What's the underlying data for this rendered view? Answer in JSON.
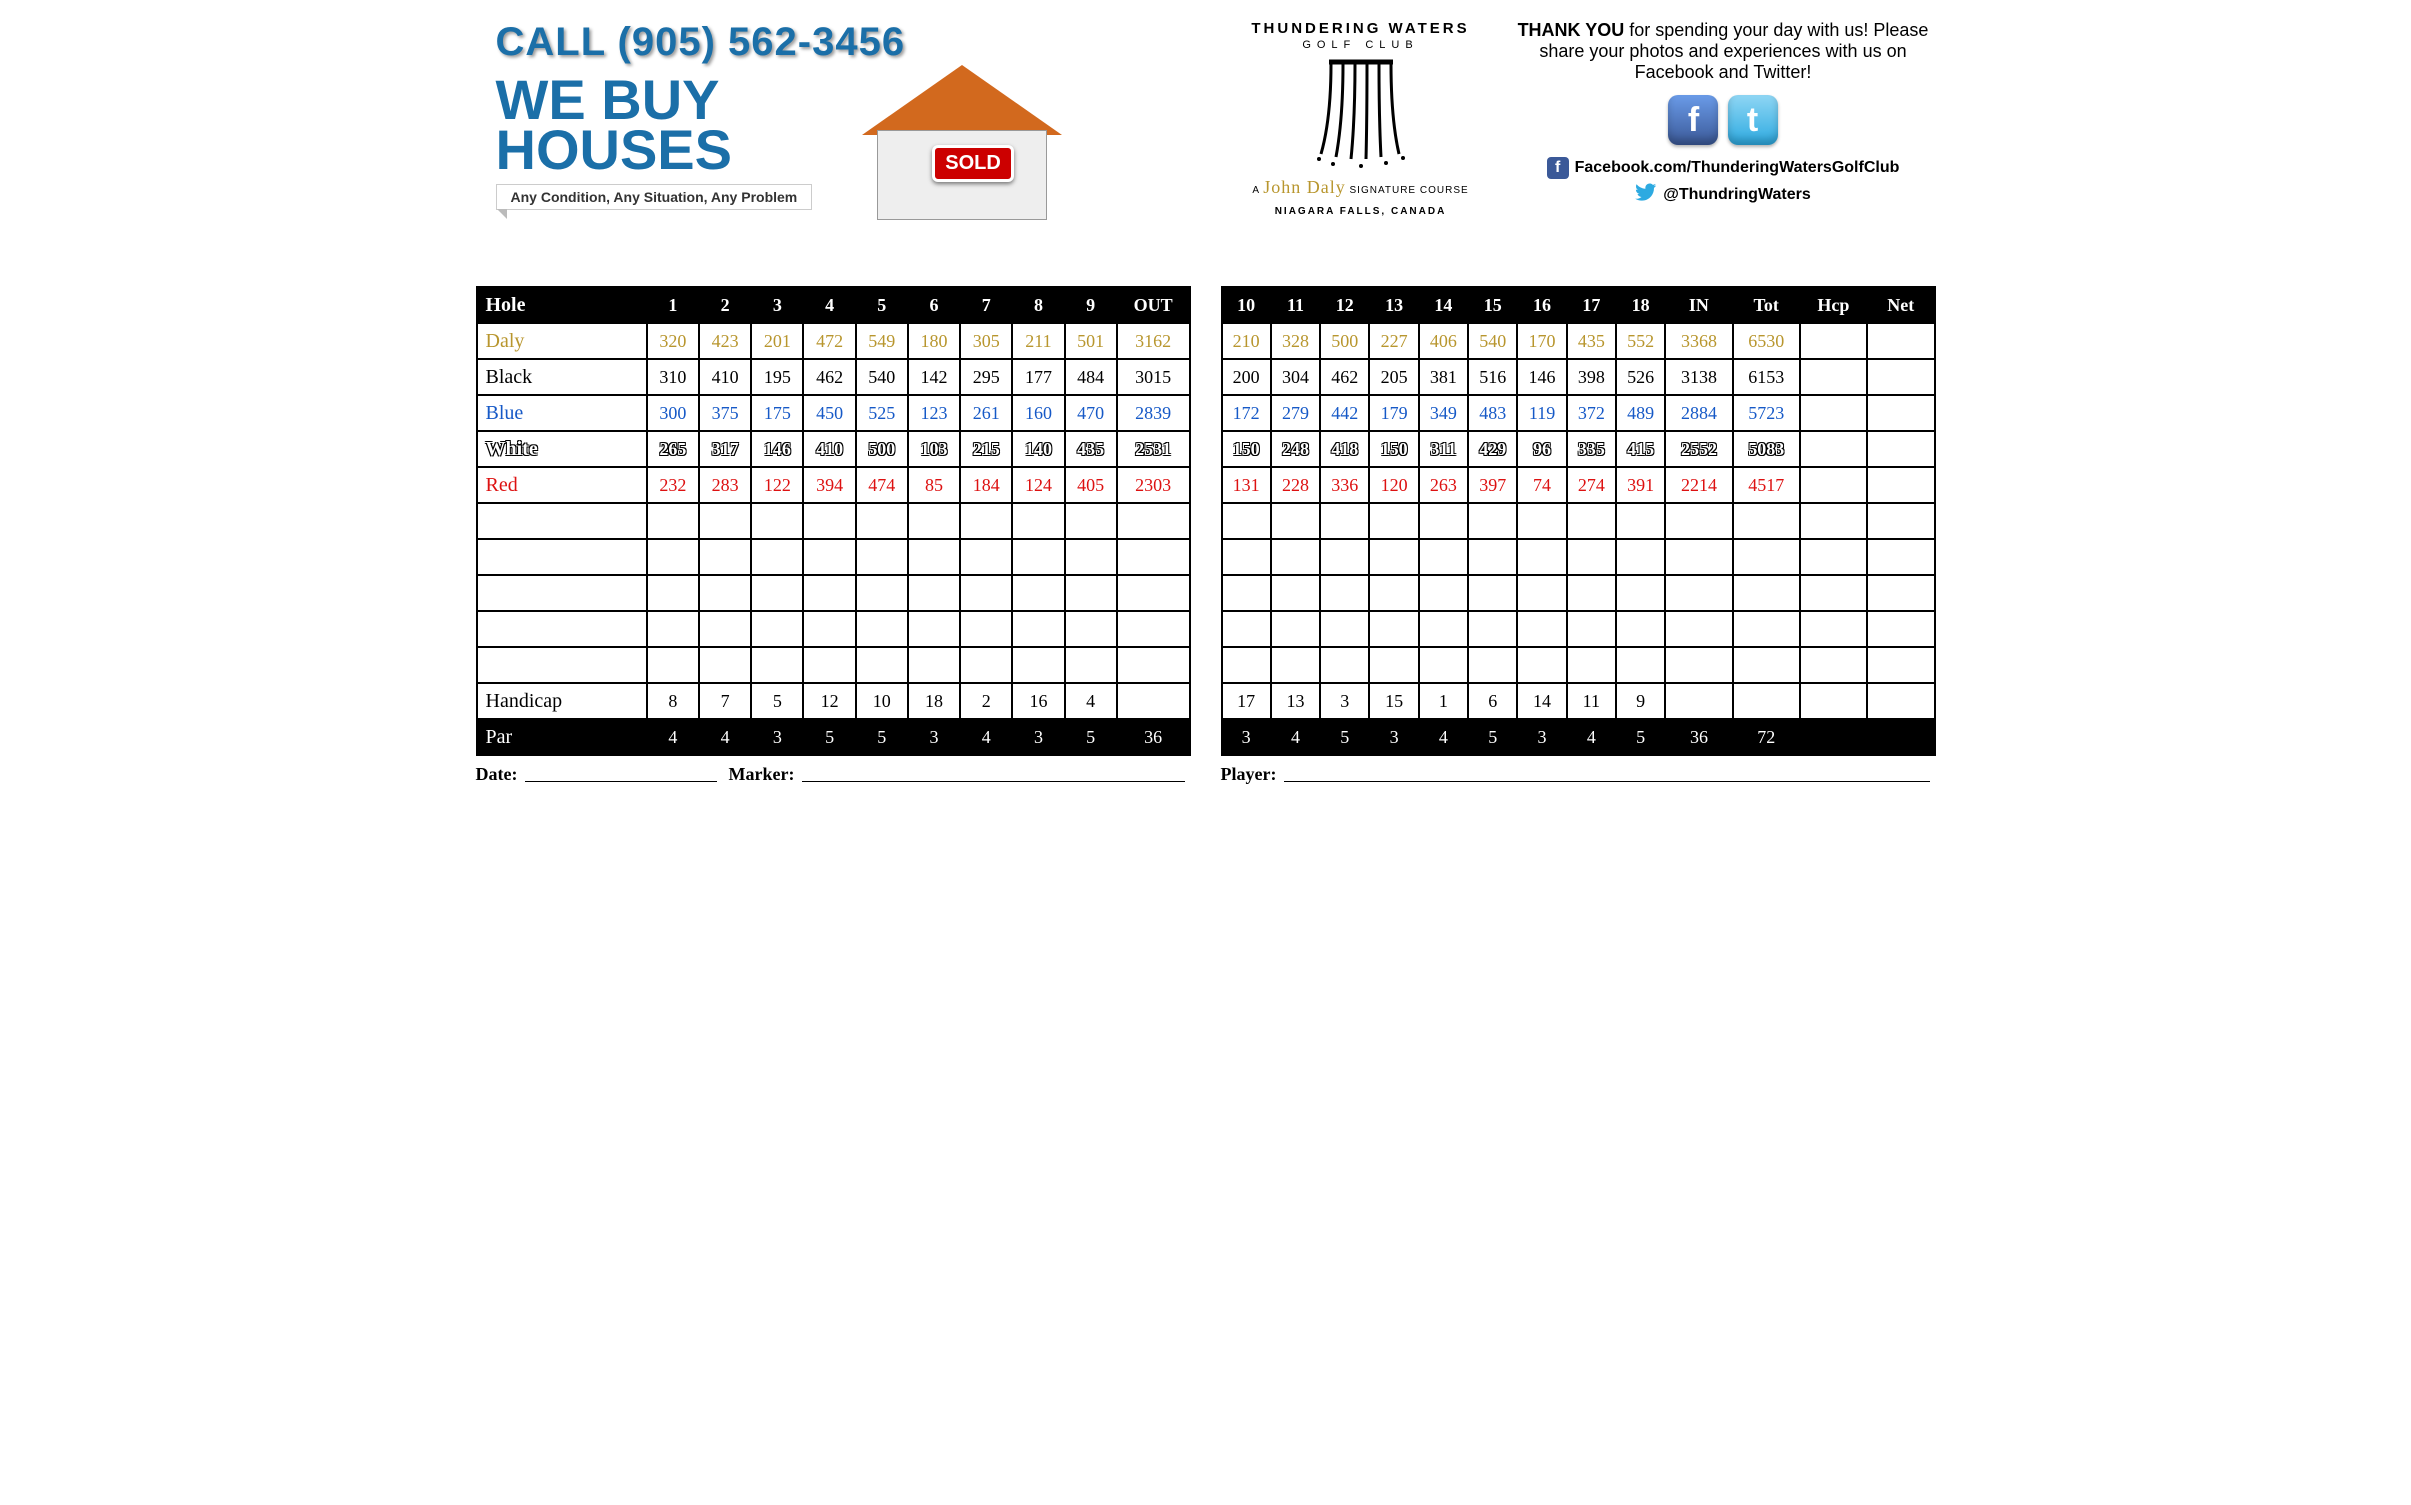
{
  "ad": {
    "phone": "CALL (905) 562-3456",
    "line1": "WE BUY",
    "line2": "HOUSES",
    "tagline": "Any Condition, Any Situation, Any Problem",
    "sold": "SOLD"
  },
  "club": {
    "name": "THUNDERING WATERS",
    "sub": "GOLF CLUB",
    "sig_prefix": "A",
    "sig_name": "John Daly",
    "sig_suffix": "SIGNATURE COURSE",
    "location": "NIAGARA FALLS, CANADA"
  },
  "thanks": {
    "bold": "THANK YOU",
    "rest": " for spending your day with us!  Please share your photos and experiences with us on Facebook and Twitter!",
    "fb_url": "Facebook.com/ThunderingWatersGolfClub",
    "tw_handle": "@ThundringWaters"
  },
  "colors": {
    "daly": "#b8962e",
    "black": "#000000",
    "blue": "#1659c7",
    "white_outline": "#000000",
    "red": "#dd1111",
    "header_bg": "#000000"
  },
  "front": {
    "header_label": "Hole",
    "headers": [
      "1",
      "2",
      "3",
      "4",
      "5",
      "6",
      "7",
      "8",
      "9",
      "OUT"
    ],
    "tees": [
      {
        "label": "Daly",
        "class": "c-daly",
        "vals": [
          "320",
          "423",
          "201",
          "472",
          "549",
          "180",
          "305",
          "211",
          "501",
          "3162"
        ]
      },
      {
        "label": "Black",
        "class": "",
        "vals": [
          "310",
          "410",
          "195",
          "462",
          "540",
          "142",
          "295",
          "177",
          "484",
          "3015"
        ]
      },
      {
        "label": "Blue",
        "class": "c-blue",
        "vals": [
          "300",
          "375",
          "175",
          "450",
          "525",
          "123",
          "261",
          "160",
          "470",
          "2839"
        ]
      },
      {
        "label": "White",
        "class": "c-white",
        "vals": [
          "265",
          "317",
          "146",
          "410",
          "500",
          "103",
          "215",
          "140",
          "435",
          "2531"
        ]
      },
      {
        "label": "Red",
        "class": "c-red",
        "vals": [
          "232",
          "283",
          "122",
          "394",
          "474",
          "85",
          "184",
          "124",
          "405",
          "2303"
        ]
      }
    ],
    "blank_rows": 5,
    "handicap": {
      "label": "Handicap",
      "vals": [
        "8",
        "7",
        "5",
        "12",
        "10",
        "18",
        "2",
        "16",
        "4",
        ""
      ]
    },
    "par": {
      "label": "Par",
      "vals": [
        "4",
        "4",
        "3",
        "5",
        "5",
        "3",
        "4",
        "3",
        "5",
        "36"
      ]
    }
  },
  "back": {
    "headers": [
      "10",
      "11",
      "12",
      "13",
      "14",
      "15",
      "16",
      "17",
      "18",
      "IN",
      "Tot",
      "Hcp",
      "Net"
    ],
    "tees": [
      {
        "class": "c-daly",
        "vals": [
          "210",
          "328",
          "500",
          "227",
          "406",
          "540",
          "170",
          "435",
          "552",
          "3368",
          "6530",
          "",
          ""
        ]
      },
      {
        "class": "",
        "vals": [
          "200",
          "304",
          "462",
          "205",
          "381",
          "516",
          "146",
          "398",
          "526",
          "3138",
          "6153",
          "",
          ""
        ]
      },
      {
        "class": "c-blue",
        "vals": [
          "172",
          "279",
          "442",
          "179",
          "349",
          "483",
          "119",
          "372",
          "489",
          "2884",
          "5723",
          "",
          ""
        ]
      },
      {
        "class": "c-white",
        "vals": [
          "150",
          "248",
          "418",
          "150",
          "311",
          "429",
          "96",
          "335",
          "415",
          "2552",
          "5083",
          "",
          ""
        ]
      },
      {
        "class": "c-red",
        "vals": [
          "131",
          "228",
          "336",
          "120",
          "263",
          "397",
          "74",
          "274",
          "391",
          "2214",
          "4517",
          "",
          ""
        ]
      }
    ],
    "blank_rows": 5,
    "handicap": {
      "vals": [
        "17",
        "13",
        "3",
        "15",
        "1",
        "6",
        "14",
        "11",
        "9",
        "",
        "",
        "",
        ""
      ]
    },
    "par": {
      "vals": [
        "3",
        "4",
        "5",
        "3",
        "4",
        "5",
        "3",
        "4",
        "5",
        "36",
        "72",
        "",
        ""
      ]
    }
  },
  "footer": {
    "date": "Date:",
    "marker": "Marker:",
    "player": "Player:"
  }
}
